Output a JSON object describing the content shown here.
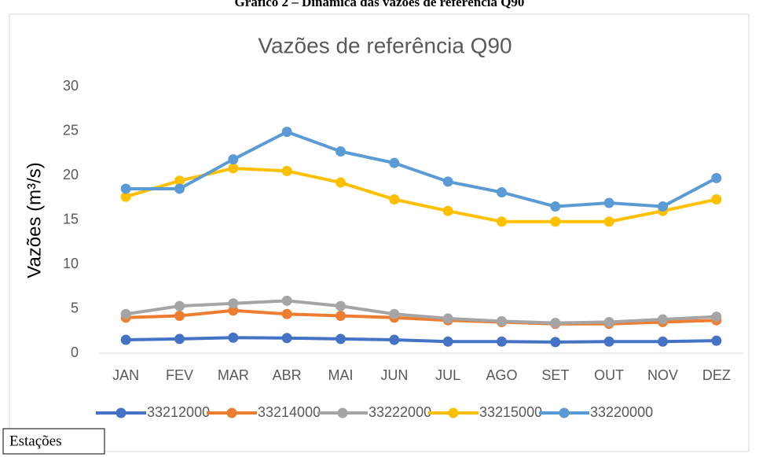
{
  "figure_caption": "Gráfico 2 – Dinâmica das vazões de referência Q90",
  "note": "Estações",
  "chart_data": {
    "type": "line",
    "title": "Vazões de referência Q90",
    "y_label": "Vazões (m³/s)",
    "categories": [
      "JAN",
      "FEV",
      "MAR",
      "ABR",
      "MAI",
      "JUN",
      "JUL",
      "AGO",
      "SET",
      "OUT",
      "NOV",
      "DEZ"
    ],
    "series": [
      {
        "name": "33212000",
        "color": "#4472c4",
        "values": [
          1.5,
          1.6,
          1.75,
          1.7,
          1.6,
          1.5,
          1.3,
          1.3,
          1.25,
          1.3,
          1.3,
          1.4
        ]
      },
      {
        "name": "33214000",
        "color": "#ed7d31",
        "values": [
          4.0,
          4.2,
          4.8,
          4.4,
          4.2,
          4.0,
          3.7,
          3.5,
          3.3,
          3.3,
          3.5,
          3.7
        ]
      },
      {
        "name": "33222000",
        "color": "#a5a5a5",
        "values": [
          4.4,
          5.3,
          5.6,
          5.9,
          5.3,
          4.4,
          3.9,
          3.6,
          3.4,
          3.5,
          3.8,
          4.1
        ]
      },
      {
        "name": "33215000",
        "color": "#ffc000",
        "values": [
          17.6,
          19.4,
          20.8,
          20.5,
          19.2,
          17.3,
          16.0,
          14.8,
          14.8,
          14.8,
          16.0,
          17.3
        ]
      },
      {
        "name": "33220000",
        "color": "#5b9bd5",
        "values": [
          18.5,
          18.5,
          21.8,
          24.9,
          22.7,
          21.4,
          19.3,
          18.1,
          16.5,
          16.9,
          16.5,
          19.7
        ]
      }
    ],
    "ylim": [
      0,
      30
    ],
    "yticks": [
      0,
      5,
      10,
      15,
      20,
      25,
      30
    ],
    "grid": false,
    "legend": "bottom"
  }
}
